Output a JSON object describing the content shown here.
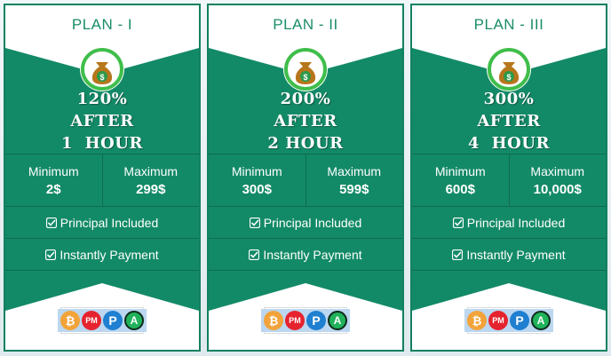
{
  "colors": {
    "card_green": "#138a67",
    "title_green": "#1b8c6a",
    "icon_ring": "#3fbe4a",
    "money_bag": "#b7761c"
  },
  "plans": [
    {
      "title": "PLAN - I",
      "rate": "120%",
      "after": "AFTER",
      "duration": "1  HOUR",
      "minimum_label": "Minimum",
      "minimum_value": "2$",
      "maximum_label": "Maximum",
      "maximum_value": "299$",
      "feature1": "Principal Included",
      "feature2": "Instantly Payment"
    },
    {
      "title": "PLAN - II",
      "rate": "200%",
      "after": "AFTER",
      "duration": "2 HOUR",
      "minimum_label": "Minimum",
      "minimum_value": "300$",
      "maximum_label": "Maximum",
      "maximum_value": "599$",
      "feature1": "Principal Included",
      "feature2": "Instantly Payment"
    },
    {
      "title": "PLAN - III",
      "rate": "300%",
      "after": "AFTER",
      "duration": "4  HOUR",
      "minimum_label": "Minimum",
      "minimum_value": "600$",
      "maximum_label": "Maximum",
      "maximum_value": "10,000$",
      "feature1": "Principal Included",
      "feature2": "Instantly Payment"
    }
  ],
  "payment_icons": {
    "bitcoin": "₿",
    "perfect_money": "PM",
    "payeer": "P",
    "advcash": "A"
  }
}
